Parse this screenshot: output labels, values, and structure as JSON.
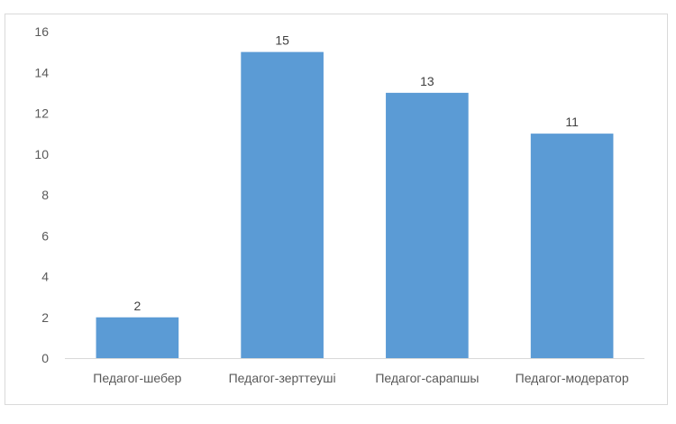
{
  "chart_data": {
    "type": "bar",
    "categories": [
      "Педагог-шебер",
      "Педагог-зерттеуші",
      "Педагог-сарапшы",
      "Педагог-модератор"
    ],
    "values": [
      2,
      15,
      13,
      11
    ],
    "title": "",
    "xlabel": "",
    "ylabel": "",
    "ylim": [
      0,
      16
    ],
    "yticks": [
      0,
      2,
      4,
      6,
      8,
      10,
      12,
      14,
      16
    ],
    "grid": false,
    "legend": "none",
    "data_labels": true,
    "bar_color": "#5b9bd5",
    "axis_color": "#d9d9d9"
  }
}
